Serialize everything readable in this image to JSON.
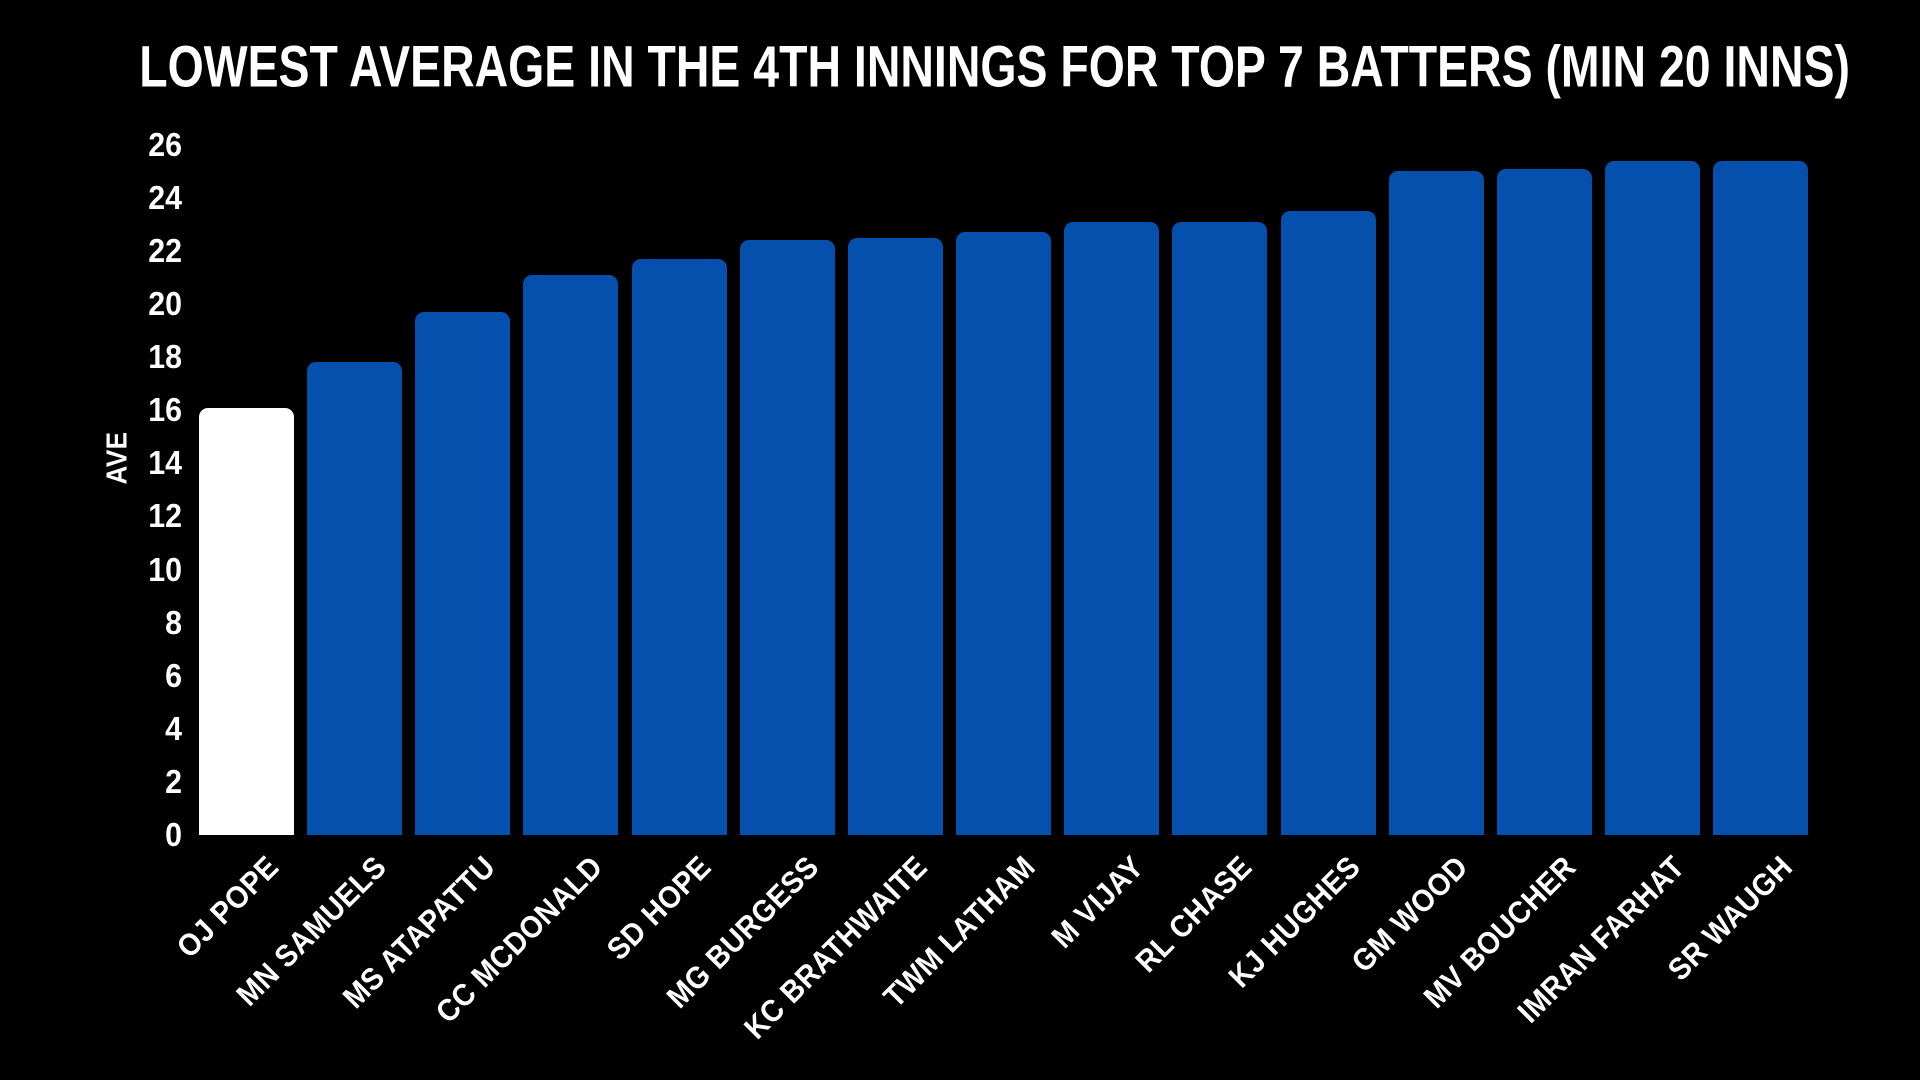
{
  "chart_data": {
    "type": "bar",
    "title": "LOWEST AVERAGE IN THE 4TH INNINGS FOR TOP 7 BATTERS (MIN 20 INNS)",
    "xlabel": "",
    "ylabel": "AVE",
    "ylim": [
      0,
      26
    ],
    "ytick_step": 2,
    "yticks": [
      0,
      2,
      4,
      6,
      8,
      10,
      12,
      14,
      16,
      18,
      20,
      22,
      24,
      26
    ],
    "grid": false,
    "legend": "none",
    "background_color": "#000000",
    "text_color": "#ffffff",
    "bar_color": "#0450ac",
    "highlight_color": "#ffffff",
    "highlight_index": 0,
    "x_label_rotation_deg": 45,
    "categories": [
      "OJ POPE",
      "MN SAMUELS",
      "MS ATAPATTU",
      "CC MCDONALD",
      "SD HOPE",
      "MG BURGESS",
      "KC BRATHWAITE",
      "TWM LATHAM",
      "M VIJAY",
      "RL CHASE",
      "KJ HUGHES",
      "GM WOOD",
      "MV BOUCHER",
      "IMRAN FARHAT",
      "SR WAUGH"
    ],
    "values": [
      16.1,
      17.8,
      19.7,
      21.1,
      21.7,
      22.4,
      22.5,
      22.7,
      23.1,
      23.1,
      23.5,
      25.0,
      25.1,
      25.4,
      25.4
    ]
  }
}
